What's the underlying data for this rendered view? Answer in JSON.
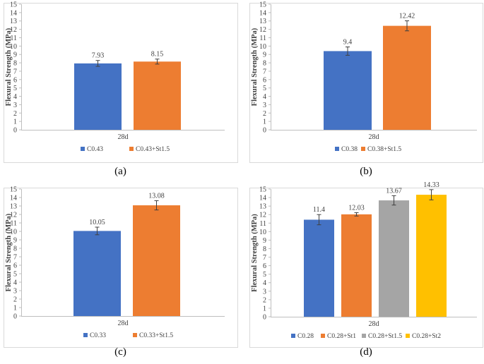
{
  "figure": {
    "panels": [
      {
        "label": "(a)"
      },
      {
        "label": "(b)"
      },
      {
        "label": "(c)"
      },
      {
        "label": "(d)"
      }
    ]
  },
  "chart_data": [
    {
      "type": "bar",
      "panel": "(a)",
      "categories": [
        "28d"
      ],
      "series": [
        {
          "name": "C0.43",
          "values": [
            7.93
          ],
          "error": [
            0.35
          ],
          "color": "#4472C4"
        },
        {
          "name": "C0.43+St1.5",
          "values": [
            8.15
          ],
          "error": [
            0.3
          ],
          "color": "#ED7D31"
        }
      ],
      "title": "",
      "xlabel": "",
      "ylabel": "Flexural Strength (MPa)",
      "ylim": [
        0,
        15
      ],
      "yticks": [
        0,
        1,
        2,
        3,
        4,
        5,
        6,
        7,
        8,
        9,
        10,
        11,
        12,
        13,
        14,
        15
      ],
      "data_labels": [
        "7.93",
        "8.15"
      ],
      "grid": false,
      "legend": "bottom"
    },
    {
      "type": "bar",
      "panel": "(b)",
      "categories": [
        "28d"
      ],
      "series": [
        {
          "name": "C0.38",
          "values": [
            9.4
          ],
          "error": [
            0.5
          ],
          "color": "#4472C4"
        },
        {
          "name": "C0.38+St1.5",
          "values": [
            12.42
          ],
          "error": [
            0.6
          ],
          "color": "#ED7D31"
        }
      ],
      "title": "",
      "xlabel": "",
      "ylabel": "Flexural Strength (MPa)",
      "ylim": [
        0,
        15
      ],
      "yticks": [
        0,
        1,
        2,
        3,
        4,
        5,
        6,
        7,
        8,
        9,
        10,
        11,
        12,
        13,
        14,
        15
      ],
      "data_labels": [
        "9.4",
        "12.42"
      ],
      "grid": false,
      "legend": "bottom"
    },
    {
      "type": "bar",
      "panel": "(c)",
      "categories": [
        "28d"
      ],
      "series": [
        {
          "name": "C0.33",
          "values": [
            10.05
          ],
          "error": [
            0.45
          ],
          "color": "#4472C4"
        },
        {
          "name": "C0.33+St1.5",
          "values": [
            13.08
          ],
          "error": [
            0.55
          ],
          "color": "#ED7D31"
        }
      ],
      "title": "",
      "xlabel": "",
      "ylabel": "Flexural Strength (MPa)",
      "ylim": [
        0,
        15
      ],
      "yticks": [
        0,
        1,
        2,
        3,
        4,
        5,
        6,
        7,
        8,
        9,
        10,
        11,
        12,
        13,
        14,
        15
      ],
      "data_labels": [
        "10.05",
        "13.08"
      ],
      "grid": false,
      "legend": "bottom"
    },
    {
      "type": "bar",
      "panel": "(d)",
      "categories": [
        "28d"
      ],
      "series": [
        {
          "name": "C0.28",
          "values": [
            11.4
          ],
          "error": [
            0.6
          ],
          "color": "#4472C4"
        },
        {
          "name": "C0.28+St1",
          "values": [
            12.03
          ],
          "error": [
            0.2
          ],
          "color": "#ED7D31"
        },
        {
          "name": "C0.28+St1.5",
          "values": [
            13.67
          ],
          "error": [
            0.55
          ],
          "color": "#A5A5A5"
        },
        {
          "name": "C0.28+St2",
          "values": [
            14.33
          ],
          "error": [
            0.6
          ],
          "color": "#FFC000"
        }
      ],
      "title": "",
      "xlabel": "",
      "ylabel": "Flexural Strength (MPa)",
      "ylim": [
        0,
        15
      ],
      "yticks": [
        0,
        1,
        2,
        3,
        4,
        5,
        6,
        7,
        8,
        9,
        10,
        11,
        12,
        13,
        14,
        15
      ],
      "data_labels": [
        "11.4",
        "12.03",
        "13.67",
        "14.33"
      ],
      "grid": false,
      "legend": "bottom"
    }
  ]
}
